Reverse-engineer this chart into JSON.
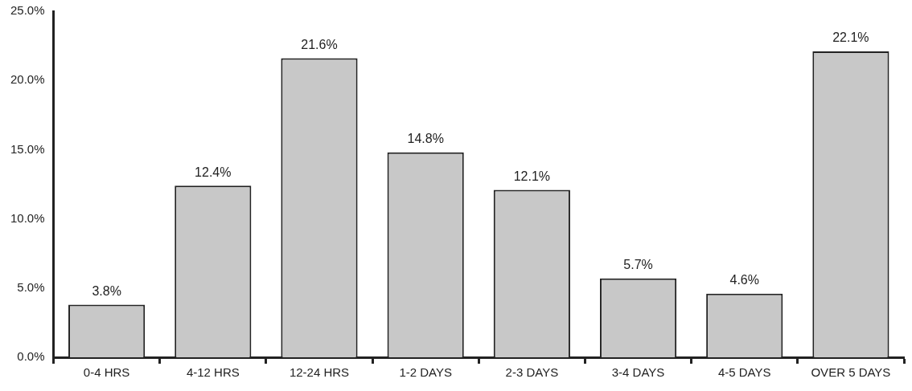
{
  "chart_data": {
    "type": "bar",
    "categories": [
      "0-4 HRS",
      "4-12 HRS",
      "12-24 HRS",
      "1-2 DAYS",
      "2-3 DAYS",
      "3-4 DAYS",
      "4-5 DAYS",
      "OVER 5 DAYS"
    ],
    "values": [
      3.8,
      12.4,
      21.6,
      14.8,
      12.1,
      5.7,
      4.6,
      22.1
    ],
    "value_labels": [
      "3.8%",
      "12.4%",
      "21.6%",
      "14.8%",
      "12.1%",
      "5.7%",
      "4.6%",
      "22.1%"
    ],
    "color": "#c8c8c8",
    "ylim": [
      0,
      25
    ],
    "yticks": [
      {
        "value": 0,
        "label": "0.0%"
      },
      {
        "value": 5,
        "label": "5.0%"
      },
      {
        "value": 10,
        "label": "10.0%"
      },
      {
        "value": 15,
        "label": "15.0%"
      },
      {
        "value": 20,
        "label": "20.0%"
      },
      {
        "value": 25,
        "label": "25.0%"
      }
    ],
    "grid": false,
    "legend": false
  }
}
